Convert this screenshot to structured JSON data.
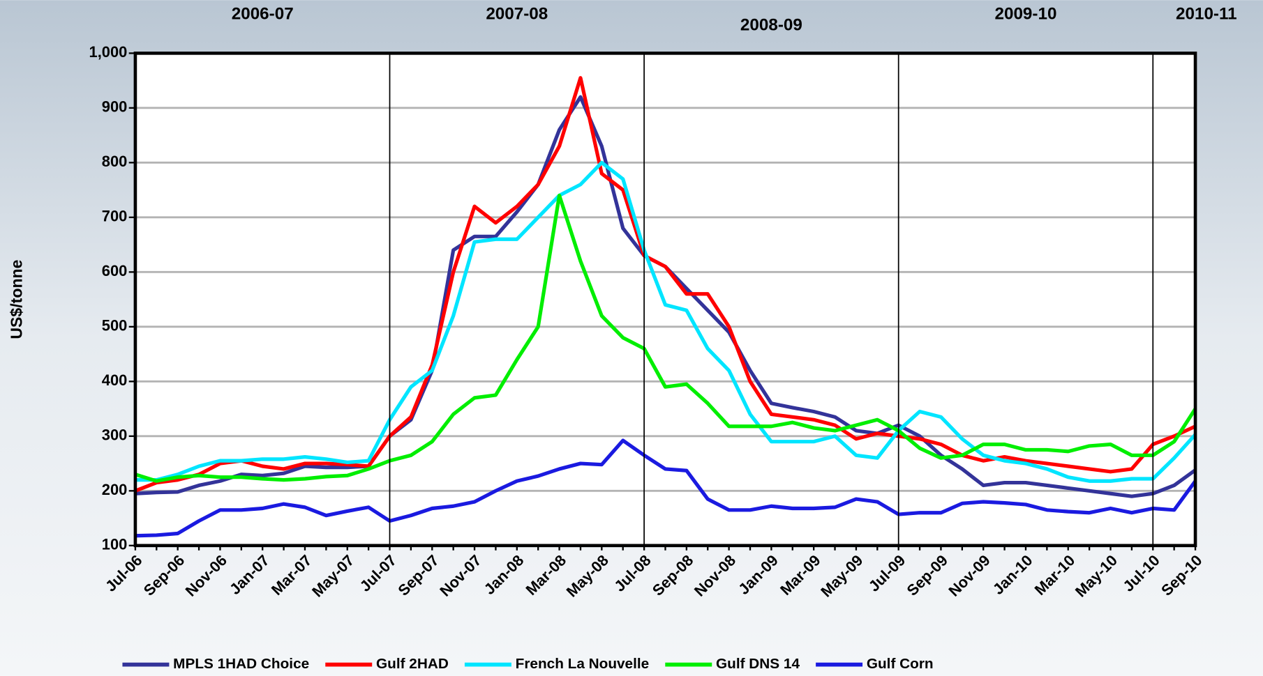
{
  "chart_data": {
    "type": "line",
    "y_label": "US$/tonne",
    "annotations": [
      "2006-07",
      "2007-08",
      "2008-09",
      "2009-10",
      "2010-11"
    ],
    "categories": [
      "Jul-06",
      null,
      "Sep-06",
      null,
      "Nov-06",
      null,
      "Jan-07",
      null,
      "Mar-07",
      null,
      "May-07",
      null,
      "Jul-07",
      null,
      "Sep-07",
      null,
      "Nov-07",
      null,
      "Jan-08",
      null,
      "Mar-08",
      null,
      "May-08",
      null,
      "Jul-08",
      null,
      "Sep-08",
      null,
      "Nov-08",
      null,
      "Jan-09",
      null,
      "Mar-09",
      null,
      "May-09",
      null,
      "Jul-09",
      null,
      "Sep-09",
      null,
      "Nov-09",
      null,
      "Jan-10",
      null,
      "Mar-10",
      null,
      "May-10",
      null,
      "Jul-10",
      null,
      "Sep-10"
    ],
    "ylim": [
      100,
      1000
    ],
    "yticks": [
      100,
      200,
      300,
      400,
      500,
      600,
      700,
      800,
      900,
      {
        "value": 1000,
        "label": "1,000"
      }
    ],
    "grid": true,
    "legend": "bottom",
    "series": [
      {
        "name": "MPLS 1HAD Choice",
        "color": "#333399",
        "values": [
          195,
          197,
          198,
          210,
          218,
          230,
          228,
          232,
          245,
          243,
          243,
          245,
          300,
          330,
          420,
          640,
          665,
          665,
          710,
          760,
          860,
          920,
          830,
          680,
          630,
          610,
          570,
          530,
          490,
          420,
          360,
          352,
          345,
          335,
          310,
          305,
          320,
          300,
          265,
          240,
          210,
          215,
          215,
          210,
          205,
          200,
          195,
          190,
          195,
          210,
          238
        ]
      },
      {
        "name": "Gulf 2HAD",
        "color": "#ff0000",
        "values": [
          200,
          215,
          220,
          230,
          250,
          255,
          245,
          240,
          250,
          250,
          248,
          245,
          300,
          335,
          430,
          600,
          720,
          690,
          720,
          760,
          830,
          955,
          780,
          750,
          630,
          610,
          560,
          560,
          500,
          400,
          340,
          335,
          330,
          320,
          295,
          305,
          300,
          295,
          285,
          265,
          255,
          262,
          255,
          250,
          245,
          240,
          235,
          240,
          285,
          300,
          318
        ]
      },
      {
        "name": "French La Nouvelle",
        "color": "#00e5ff",
        "values": [
          220,
          220,
          230,
          245,
          255,
          255,
          258,
          258,
          262,
          258,
          252,
          255,
          330,
          390,
          420,
          520,
          655,
          660,
          660,
          700,
          740,
          760,
          800,
          770,
          640,
          540,
          530,
          460,
          420,
          340,
          290,
          290,
          290,
          300,
          265,
          260,
          310,
          345,
          335,
          295,
          265,
          255,
          250,
          240,
          225,
          218,
          218,
          222,
          222,
          260,
          303
        ]
      },
      {
        "name": "Gulf DNS 14",
        "color": "#00ee00",
        "values": [
          230,
          218,
          225,
          228,
          225,
          225,
          222,
          220,
          222,
          226,
          228,
          240,
          255,
          265,
          290,
          340,
          370,
          375,
          440,
          500,
          740,
          620,
          520,
          480,
          460,
          390,
          395,
          360,
          318,
          318,
          318,
          325,
          315,
          310,
          320,
          330,
          310,
          278,
          260,
          265,
          285,
          285,
          275,
          275,
          272,
          282,
          285,
          265,
          265,
          290,
          350
        ]
      },
      {
        "name": "Gulf Corn",
        "color": "#1a1ae0",
        "values": [
          118,
          119,
          122,
          145,
          165,
          165,
          168,
          176,
          170,
          155,
          163,
          170,
          145,
          155,
          168,
          172,
          180,
          200,
          218,
          227,
          240,
          250,
          248,
          292,
          265,
          240,
          237,
          185,
          165,
          165,
          172,
          168,
          168,
          170,
          185,
          180,
          157,
          160,
          160,
          177,
          180,
          178,
          175,
          165,
          162,
          160,
          168,
          160,
          168,
          165,
          218
        ]
      }
    ]
  }
}
